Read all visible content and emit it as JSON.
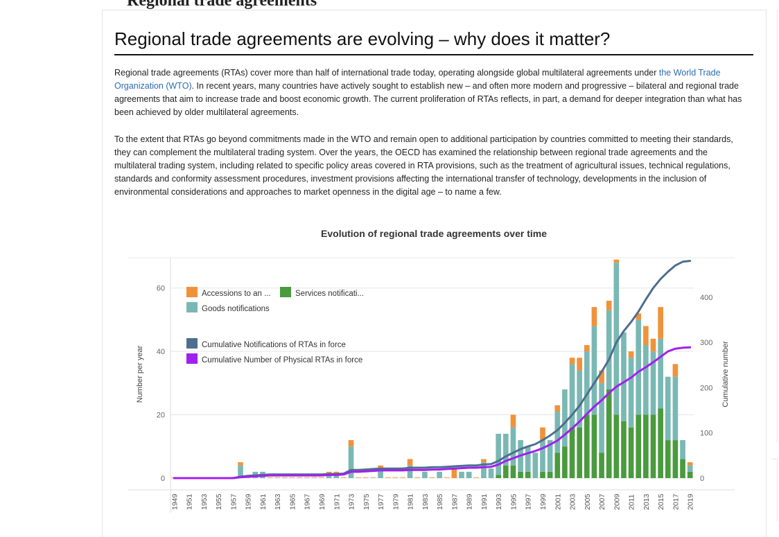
{
  "page": {
    "clipped_heading": "Regional trade agreements",
    "title": "Regional trade agreements are evolving – why does it matter?",
    "paragraph1": {
      "before_link": "Regional trade agreements (RTAs) cover more than half of international trade today, operating alongside global multilateral agreements under ",
      "link": "the World Trade Organization (WTO)",
      "after_link": ". In recent years, many countries have actively sought to establish new – and often more modern and progressive – bilateral and regional trade agreements that aim to increase trade and boost economic growth. The current proliferation of RTAs reflects, in part, a demand for deeper integration than what has been achieved by older multilateral agreements."
    },
    "paragraph2": "To the extent that RTAs go beyond commitments made in the WTO and remain open to additional participation by countries committed to meeting their standards, they can complement the multilateral trading system. Over the years, the OECD has examined the relationship between regional trade agreements and the multilateral trading system, including related to specific policy areas covered in RTA provisions, such as the treatment of agricultural issues, technical regulations, standards and conformity assessment procedures, investment provisions affecting the international transfer of technology, developments in the inclusion of environmental considerations and approaches to market openness in the digital age – to name a few."
  },
  "colors": {
    "goods": "#7ab8b4",
    "services": "#4a9a3e",
    "accessions": "#f0923a",
    "cum_notifications": "#4e6e8e",
    "cum_physical": "#a020f0",
    "grid": "#e5e5e5",
    "axis_text": "#666666"
  },
  "chart_data": {
    "type": "bar",
    "title": "Evolution of regional trade agreements over time",
    "ylabel": "Number per year",
    "y2label": "Cumulative number",
    "ylim": [
      0,
      70
    ],
    "y2lim": [
      0,
      490
    ],
    "yticks": [
      0,
      20,
      40,
      60
    ],
    "y2ticks": [
      0,
      100,
      200,
      300,
      400
    ],
    "legend": {
      "accessions": "Accessions to an ...",
      "services": "Services notificati...",
      "goods": "Goods notifications",
      "cum_notifications": "Cumulative Notifications of RTAs in force",
      "cum_physical": "Cumulative Number of Physical RTAs in force"
    },
    "years": [
      1949,
      1950,
      1951,
      1952,
      1953,
      1954,
      1955,
      1956,
      1957,
      1958,
      1959,
      1960,
      1961,
      1962,
      1963,
      1964,
      1965,
      1966,
      1967,
      1968,
      1969,
      1970,
      1971,
      1972,
      1973,
      1974,
      1975,
      1976,
      1977,
      1978,
      1979,
      1980,
      1981,
      1982,
      1983,
      1984,
      1985,
      1986,
      1987,
      1988,
      1989,
      1990,
      1991,
      1992,
      1993,
      1994,
      1995,
      1996,
      1997,
      1998,
      1999,
      2000,
      2001,
      2002,
      2003,
      2004,
      2005,
      2006,
      2007,
      2008,
      2009,
      2010,
      2011,
      2012,
      2013,
      2014,
      2015,
      2016,
      2017,
      2018,
      2019
    ],
    "xtick_labels": [
      "1949",
      "1951",
      "1953",
      "1955",
      "1957",
      "1959",
      "1961",
      "1963",
      "1965",
      "1967",
      "1969",
      "1971",
      "1973",
      "1975",
      "1977",
      "1979",
      "1981",
      "1983",
      "1985",
      "1987",
      "1989",
      "1991",
      "1993",
      "1995",
      "1997",
      "1999",
      "2001",
      "2003",
      "2005",
      "2007",
      "2009",
      "2011",
      "2013",
      "2015",
      "2017",
      "2019"
    ],
    "series": [
      {
        "name": "Goods notifications",
        "key": "goods",
        "values": [
          0,
          0,
          0,
          0,
          0,
          0,
          0,
          0,
          0,
          4,
          0,
          2,
          2,
          0,
          0,
          0,
          0,
          0,
          0,
          0,
          0,
          1,
          1,
          0,
          10,
          0,
          0,
          0,
          3,
          0,
          0,
          0,
          4,
          0,
          2,
          0,
          2,
          0,
          0,
          2,
          2,
          0,
          5,
          3,
          13,
          10,
          12,
          10,
          8,
          8,
          10,
          10,
          13,
          18,
          20,
          18,
          20,
          28,
          22,
          25,
          48,
          28,
          22,
          30,
          22,
          20,
          22,
          20,
          20,
          6,
          2
        ]
      },
      {
        "name": "Services notifications",
        "key": "services",
        "values": [
          0,
          0,
          0,
          0,
          0,
          0,
          0,
          0,
          0,
          0,
          0,
          0,
          0,
          0,
          0,
          0,
          0,
          0,
          0,
          0,
          0,
          0,
          0,
          0,
          0,
          0,
          0,
          0,
          0,
          0,
          0,
          0,
          0,
          0,
          0,
          0,
          0,
          0,
          0,
          0,
          0,
          0,
          0,
          0,
          1,
          4,
          4,
          2,
          2,
          0,
          2,
          2,
          8,
          10,
          16,
          16,
          20,
          20,
          8,
          28,
          20,
          18,
          16,
          20,
          20,
          20,
          22,
          12,
          12,
          6,
          2
        ]
      },
      {
        "name": "Accessions to an RTA",
        "key": "accessions",
        "values": [
          0,
          0,
          0,
          0,
          0,
          0,
          0,
          0,
          0,
          1,
          0,
          0,
          0,
          0,
          0,
          0,
          0,
          0,
          0,
          0,
          0,
          1,
          1,
          0,
          2,
          0,
          0,
          0,
          1,
          0,
          0,
          0,
          2,
          0,
          0,
          0,
          0,
          0,
          3,
          0,
          0,
          0,
          1,
          0,
          0,
          0,
          4,
          0,
          0,
          0,
          4,
          0,
          2,
          0,
          2,
          4,
          2,
          6,
          4,
          3,
          1,
          0,
          2,
          2,
          6,
          4,
          10,
          0,
          4,
          0,
          1
        ]
      },
      {
        "name": "Cumulative Notifications of RTAs in force",
        "key": "cum_notifications",
        "line": true,
        "values": [
          0,
          0,
          0,
          0,
          0,
          0,
          0,
          0,
          0,
          3,
          5,
          6,
          7,
          8,
          8,
          8,
          8,
          8,
          8,
          8,
          8,
          9,
          9,
          10,
          18,
          18,
          19,
          20,
          21,
          21,
          21,
          21,
          23,
          23,
          23,
          24,
          24,
          25,
          26,
          27,
          28,
          28,
          30,
          31,
          38,
          48,
          56,
          64,
          70,
          75,
          84,
          94,
          106,
          122,
          140,
          160,
          185,
          210,
          235,
          262,
          300,
          325,
          345,
          368,
          395,
          420,
          440,
          456,
          470,
          478,
          480
        ]
      },
      {
        "name": "Cumulative Number of Physical RTAs in force",
        "key": "cum_physical",
        "line": true,
        "values": [
          0,
          0,
          0,
          0,
          0,
          0,
          0,
          0,
          0,
          2,
          3,
          4,
          5,
          6,
          6,
          6,
          6,
          6,
          6,
          6,
          6,
          7,
          7,
          8,
          14,
          14,
          15,
          16,
          17,
          17,
          17,
          17,
          18,
          18,
          18,
          19,
          19,
          20,
          21,
          22,
          23,
          23,
          24,
          25,
          30,
          38,
          44,
          50,
          55,
          60,
          66,
          74,
          83,
          96,
          110,
          125,
          142,
          158,
          172,
          188,
          202,
          212,
          222,
          235,
          245,
          256,
          268,
          280,
          286,
          288,
          289
        ]
      }
    ]
  }
}
